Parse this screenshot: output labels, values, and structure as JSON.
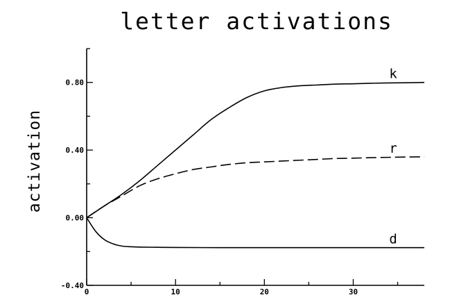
{
  "chart_data": {
    "type": "line",
    "title": "letter activations",
    "xlabel": "",
    "ylabel": "activation",
    "xlim": [
      0,
      38
    ],
    "ylim": [
      -0.4,
      1.0
    ],
    "xticks": [
      0,
      10,
      20,
      30
    ],
    "xtick_labels": [
      "0",
      "10",
      "20",
      "30"
    ],
    "yticks": [
      -0.4,
      0.0,
      0.4,
      0.8
    ],
    "ytick_labels": [
      "-0.40",
      "0.00",
      "0.40",
      "0.80"
    ],
    "grid": false,
    "legend": "none",
    "series": [
      {
        "name": "k",
        "style": "solid",
        "x": [
          0,
          2,
          4,
          6,
          8,
          10,
          12,
          14,
          16,
          18,
          20,
          22,
          24,
          26,
          28,
          30,
          32,
          34,
          36,
          38
        ],
        "y": [
          0.0,
          0.07,
          0.14,
          0.22,
          0.31,
          0.4,
          0.49,
          0.58,
          0.65,
          0.71,
          0.75,
          0.77,
          0.78,
          0.785,
          0.79,
          0.792,
          0.795,
          0.797,
          0.798,
          0.8
        ]
      },
      {
        "name": "r",
        "style": "dashed",
        "x": [
          0,
          2,
          4,
          6,
          8,
          10,
          12,
          14,
          16,
          18,
          20,
          22,
          24,
          26,
          28,
          30,
          32,
          34,
          36,
          38
        ],
        "y": [
          0.0,
          0.07,
          0.13,
          0.19,
          0.23,
          0.26,
          0.285,
          0.3,
          0.315,
          0.325,
          0.33,
          0.335,
          0.34,
          0.345,
          0.35,
          0.352,
          0.355,
          0.357,
          0.359,
          0.36
        ]
      },
      {
        "name": "d",
        "style": "solid",
        "x": [
          0,
          1,
          2,
          3,
          4,
          5,
          6,
          8,
          10,
          15,
          20,
          25,
          30,
          35,
          38
        ],
        "y": [
          0.0,
          -0.08,
          -0.13,
          -0.155,
          -0.168,
          -0.172,
          -0.174,
          -0.175,
          -0.176,
          -0.177,
          -0.177,
          -0.177,
          -0.177,
          -0.177,
          -0.177
        ]
      }
    ]
  }
}
